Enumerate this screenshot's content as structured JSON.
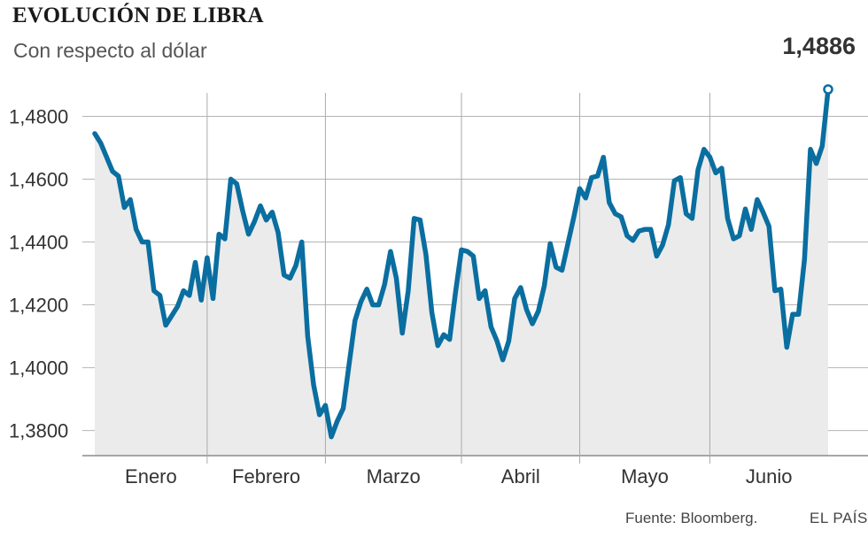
{
  "header": {
    "title": "EVOLUCIÓN DE LIBRA",
    "subtitle": "Con respecto al dólar"
  },
  "footer": {
    "source": "Fuente: Bloomberg.",
    "brand": "EL PAÍS"
  },
  "colors": {
    "line": "#0a6ea0",
    "area": "#ebebeb",
    "grid": "#b4b4b4",
    "text": "#333333"
  },
  "chart_data": {
    "type": "line",
    "title": "EVOLUCIÓN DE LIBRA",
    "subtitle": "Con respecto al dólar",
    "ylim": [
      1.372,
      1.4945
    ],
    "yticks": [
      1.38,
      1.4,
      1.42,
      1.44,
      1.46,
      1.48
    ],
    "ytick_labels": [
      "1,3800",
      "1,4000",
      "1,4200",
      "1,4400",
      "1,4600",
      "1,4800"
    ],
    "grid": true,
    "area_fill": true,
    "months": [
      "Enero",
      "Febrero",
      "Marzo",
      "Abril",
      "Mayo",
      "Junio"
    ],
    "month_day_bounds": [
      0,
      19,
      39,
      62,
      82,
      104,
      118
    ],
    "last_value_label": "1,4886",
    "series": [
      {
        "values": [
          1.4745,
          1.4715,
          1.467,
          1.4625,
          1.461,
          1.451,
          1.4535,
          1.444,
          1.44,
          1.44,
          1.4245,
          1.423,
          1.4135,
          1.4165,
          1.4195,
          1.4245,
          1.423,
          1.4335,
          1.4215,
          1.435,
          1.422,
          1.4425,
          1.441,
          1.46,
          1.4585,
          1.45,
          1.4425,
          1.4465,
          1.4515,
          1.447,
          1.4495,
          1.443,
          1.4295,
          1.4285,
          1.4325,
          1.44,
          1.41,
          1.3945,
          1.385,
          1.388,
          1.378,
          1.383,
          1.387,
          1.401,
          1.415,
          1.421,
          1.425,
          1.42,
          1.42,
          1.4265,
          1.437,
          1.4285,
          1.411,
          1.4245,
          1.4475,
          1.447,
          1.436,
          1.4175,
          1.407,
          1.4105,
          1.409,
          1.424,
          1.4375,
          1.437,
          1.4355,
          1.422,
          1.4245,
          1.413,
          1.4085,
          1.4025,
          1.4085,
          1.422,
          1.4255,
          1.4185,
          1.414,
          1.418,
          1.426,
          1.4395,
          1.432,
          1.431,
          1.4395,
          1.448,
          1.457,
          1.454,
          1.4605,
          1.461,
          1.467,
          1.4525,
          1.449,
          1.448,
          1.442,
          1.4405,
          1.4435,
          1.444,
          1.444,
          1.4355,
          1.439,
          1.4455,
          1.4595,
          1.4605,
          1.449,
          1.4475,
          1.463,
          1.4695,
          1.467,
          1.462,
          1.4635,
          1.4475,
          1.441,
          1.442,
          1.4505,
          1.444,
          1.4535,
          1.4495,
          1.445,
          1.4245,
          1.425,
          1.4065,
          1.417,
          1.417,
          1.4345,
          1.4695,
          1.465,
          1.4705,
          1.4886
        ]
      }
    ]
  }
}
